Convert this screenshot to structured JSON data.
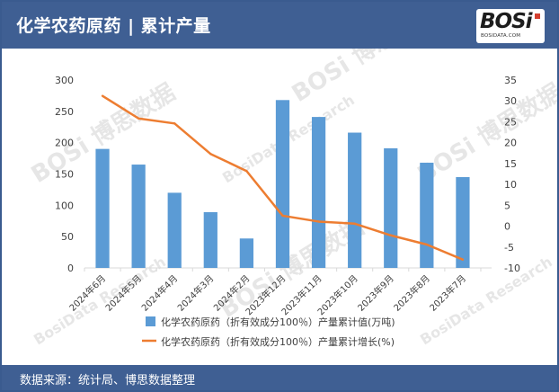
{
  "header": {
    "title": "化学农药原药 | 累计产量"
  },
  "logo": {
    "mark": "BOSi",
    "sub": "BOSIDATA.COM",
    "accent": "#d43f2f"
  },
  "footer": {
    "source": "数据来源：统计局、博思数据整理"
  },
  "watermarks": [
    "博思数据",
    "BosiData Research"
  ],
  "colors": {
    "header_bg": "#3f5f93",
    "bar": "#5b9bd5",
    "line": "#ed7d31"
  },
  "chart_data": {
    "type": "bar",
    "categories": [
      "2024年6月",
      "2024年5月",
      "2024年4月",
      "2024年3月",
      "2024年2月",
      "2023年12月",
      "2023年11月",
      "2023年10月",
      "2023年9月",
      "2023年8月",
      "2023年7月"
    ],
    "series": [
      {
        "name": "化学农药原药（折有效成分100％）产量累计值(万吨)",
        "type": "bar",
        "axis": "left",
        "values": [
          190,
          165,
          120,
          89,
          47,
          268,
          241,
          216,
          191,
          168,
          145
        ]
      },
      {
        "name": "化学农药原药（折有效成分100％）产量累计增长(%)",
        "type": "line",
        "axis": "right",
        "values": [
          31.2,
          25.8,
          24.6,
          17.3,
          13.2,
          2.5,
          1.1,
          0.6,
          -2.2,
          -4.4,
          -8
        ]
      }
    ],
    "y_left": {
      "min": 0,
      "max": 300,
      "ticks": [
        0,
        50,
        100,
        150,
        200,
        250,
        300
      ]
    },
    "y_right": {
      "min": -10,
      "max": 35,
      "ticks": [
        -10,
        -5,
        0,
        5,
        10,
        15,
        20,
        25,
        30,
        35
      ]
    },
    "legend_position": "bottom",
    "grid": false
  }
}
